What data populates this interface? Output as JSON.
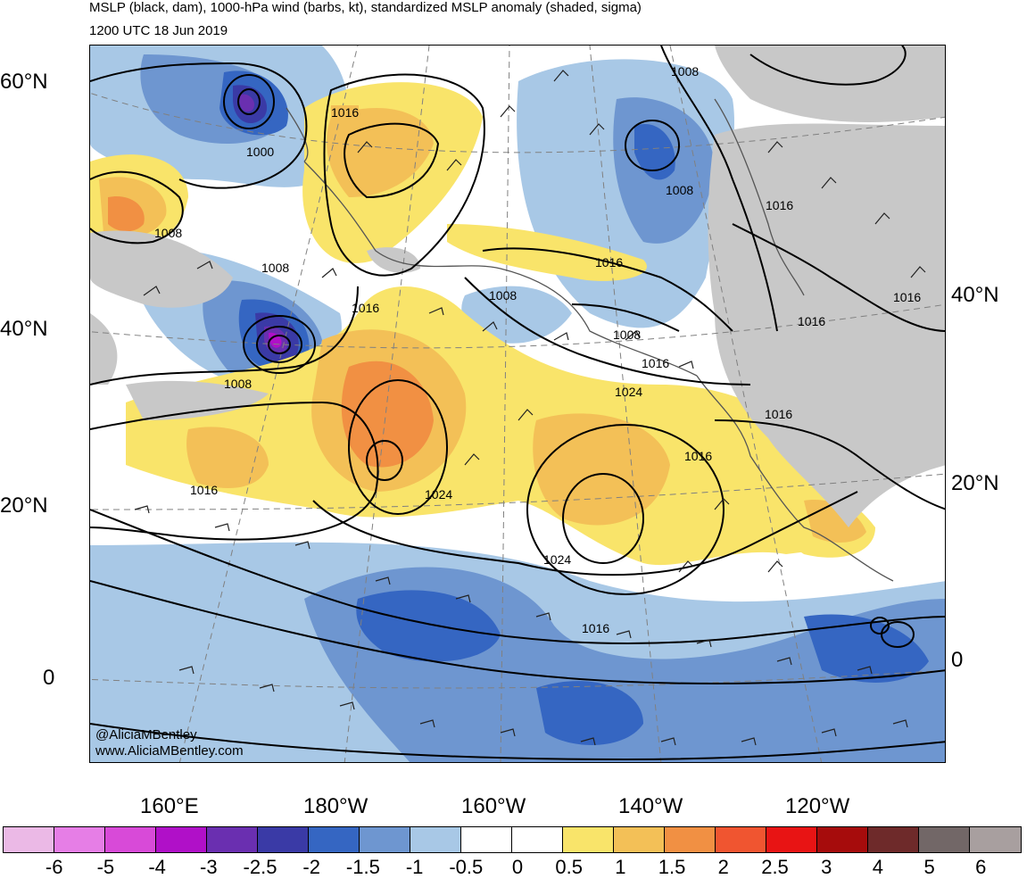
{
  "title": "MSLP (black, dam), 1000-hPa wind (barbs, kt), standardized MSLP anomaly (shaded, sigma)",
  "subtitle": "1200 UTC 18 Jun 2019",
  "credit": {
    "handle": "@AliciaMBentley",
    "website": "www.AliciaMBentley.com"
  },
  "latitude_labels_left": [
    "60°N",
    "40°N",
    "20°N",
    "0"
  ],
  "latitude_labels_right": [
    "40°N",
    "20°N",
    "0"
  ],
  "longitude_labels": [
    "160°E",
    "180°W",
    "160°W",
    "140°W",
    "120°W"
  ],
  "isobar_labels": [
    "1016",
    "1000",
    "1008",
    "1008",
    "1008",
    "1016",
    "1008",
    "1016",
    "1024",
    "1024",
    "1016",
    "1016",
    "1008",
    "1008",
    "1016",
    "1008",
    "1016",
    "1016",
    "1016",
    "1016",
    "1024",
    "1016"
  ],
  "colorbar": {
    "colors": [
      "#ebb9e6",
      "#e67ee6",
      "#d84ad8",
      "#b010c8",
      "#6a2fb0",
      "#3a3aa6",
      "#3566c2",
      "#6e96d0",
      "#a8c8e6",
      "#ffffff",
      "#ffffff",
      "#f9e46a",
      "#f3c057",
      "#f19043",
      "#f05530",
      "#e81414",
      "#a60c0c",
      "#6e2a2a",
      "#726767",
      "#a89f9f"
    ],
    "tick_labels": [
      "-6",
      "-5",
      "-4",
      "-3",
      "-2.5",
      "-2",
      "-1.5",
      "-1",
      "-0.5",
      "0",
      "0.5",
      "1",
      "1.5",
      "2",
      "2.5",
      "3",
      "4",
      "5",
      "6"
    ]
  }
}
